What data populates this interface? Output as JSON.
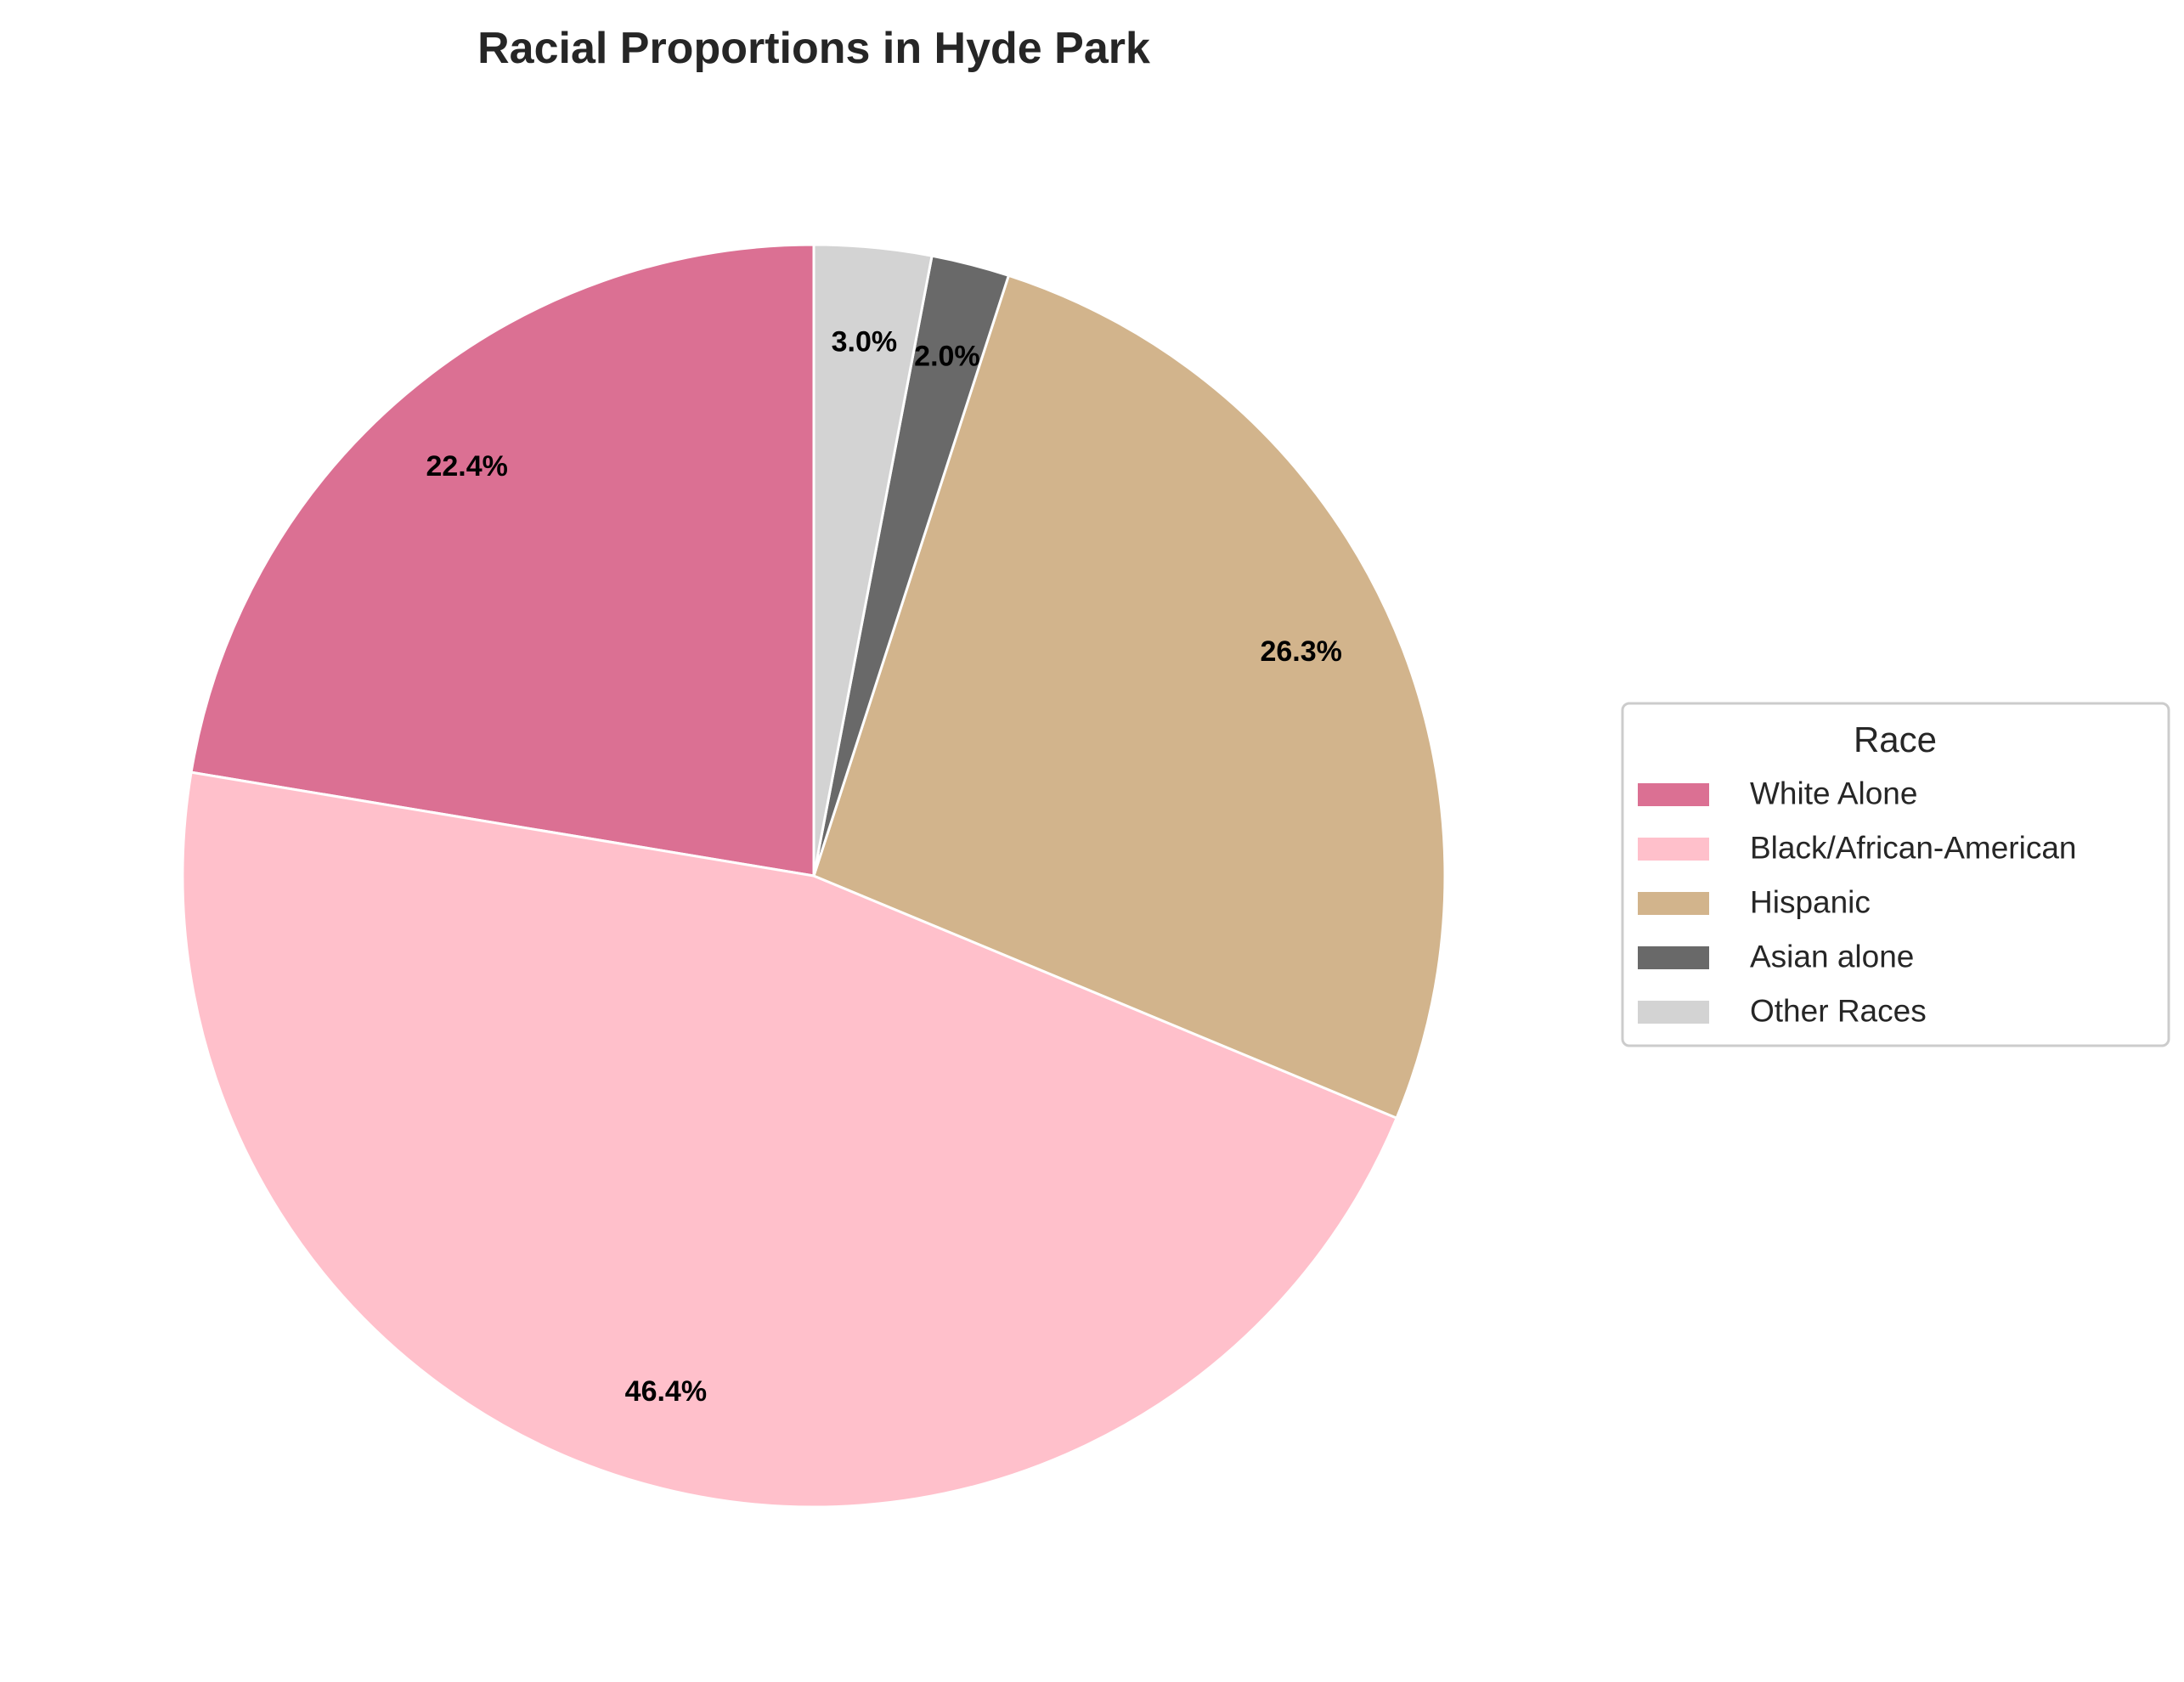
{
  "chart_data": {
    "type": "pie",
    "title": "Racial Proportions in Hyde Park",
    "categories": [
      "White Alone",
      "Black/African-American",
      "Hispanic",
      "Asian alone",
      "Other Races"
    ],
    "values": [
      22.4,
      46.4,
      26.3,
      2.0,
      3.0
    ],
    "value_labels": [
      "22.4%",
      "46.4%",
      "26.3%",
      "2.0%",
      "3.0%"
    ],
    "colors": [
      "#db7093",
      "#ffc0cb",
      "#d2b48c",
      "#696969",
      "#d3d3d3"
    ],
    "start_angle_deg": 90,
    "direction": "counterclockwise",
    "slice_edge_color": "#ffffff",
    "legend": {
      "title": "Race",
      "placement": "center-right"
    }
  }
}
